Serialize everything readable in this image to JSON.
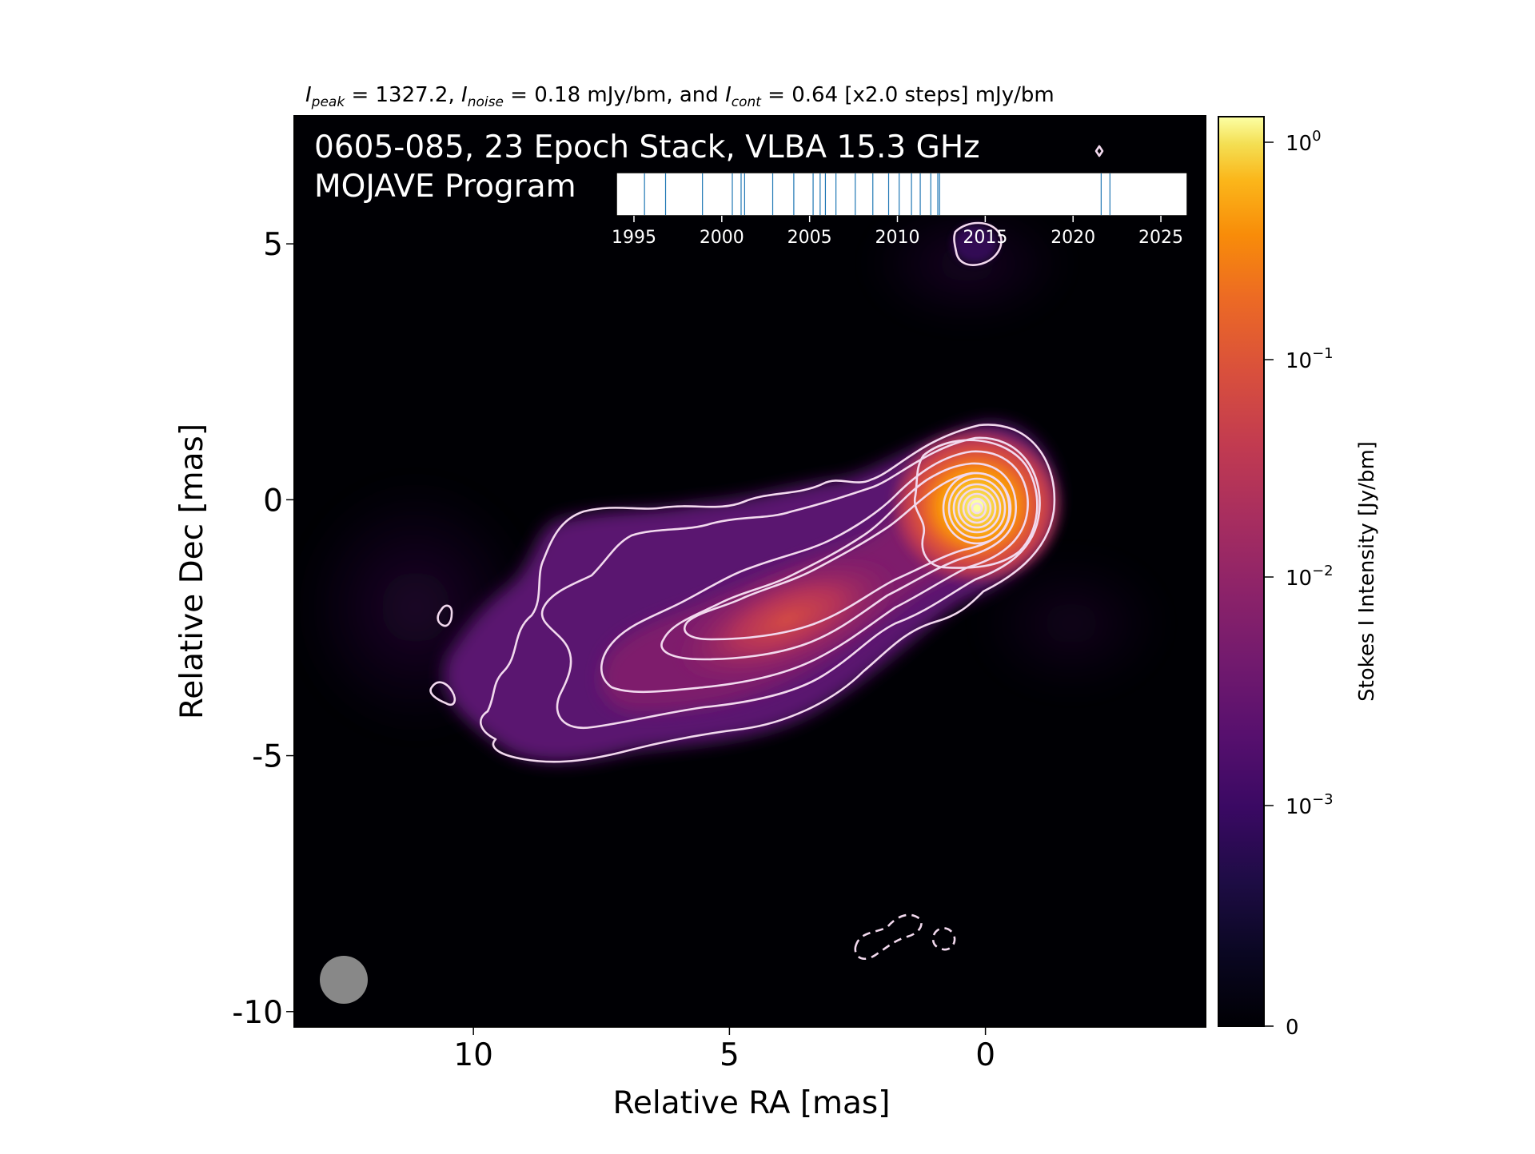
{
  "chart_data": {
    "type": "heatmap",
    "header": {
      "peak_symbol": "I",
      "peak_sub": "peak",
      "peak_text": " = 1327.2, ",
      "noise_symbol": "I",
      "noise_sub": "noise",
      "noise_text": " = 0.18 mJy/bm, and ",
      "cont_symbol": "I",
      "cont_sub": "cont",
      "cont_text": " = 0.64 [x2.0 steps] mJy/bm"
    },
    "title_line1": "0605-085, 23 Epoch Stack, VLBA 15.3 GHz",
    "title_line2": "MOJAVE Program",
    "xlabel": "Relative RA [mas]",
    "ylabel": "Relative Dec [mas]",
    "xlim": [
      13.5,
      -4.3
    ],
    "ylim": [
      -10.3,
      7.5
    ],
    "xticks": [
      10,
      5,
      0
    ],
    "xtick_labels": [
      "10",
      "5",
      "0"
    ],
    "yticks": [
      5,
      0,
      -5,
      -10
    ],
    "ytick_labels": [
      "5",
      "0",
      "-5",
      "-10"
    ],
    "peak_position": [
      0,
      0
    ],
    "beam_position": [
      12.5,
      -9.3
    ],
    "colorbar": {
      "label": "Stokes I Intensity [Jy/bm]",
      "scale": "asinh/log",
      "ticks": [
        "10^0",
        "10^-1",
        "10^-2",
        "10^-3",
        "0"
      ],
      "tick_values": [
        1.0,
        0.1,
        0.01,
        0.001,
        0
      ],
      "tick_base": "10",
      "tick_exponents": [
        "0",
        "−1",
        "−2",
        "−3"
      ],
      "zero_label": "0"
    },
    "epochs_inset": {
      "xlim": [
        1994,
        2026.5
      ],
      "ticks": [
        1995,
        2000,
        2005,
        2010,
        2015,
        2020,
        2025
      ],
      "tick_labels": [
        "1995",
        "2000",
        "2005",
        "2010",
        "2015",
        "2020",
        "2025"
      ],
      "epochs": [
        1995.6,
        1996.8,
        1998.9,
        2000.6,
        2001.1,
        2001.3,
        2002.9,
        2004.1,
        2005.2,
        2005.6,
        2005.9,
        2006.5,
        2007.6,
        2008.6,
        2009.5,
        2010.1,
        2010.8,
        2011.3,
        2011.9,
        2012.3,
        2012.4,
        2021.6,
        2022.1
      ],
      "line_color": "#1f77b4"
    },
    "colormap": "inferno"
  }
}
